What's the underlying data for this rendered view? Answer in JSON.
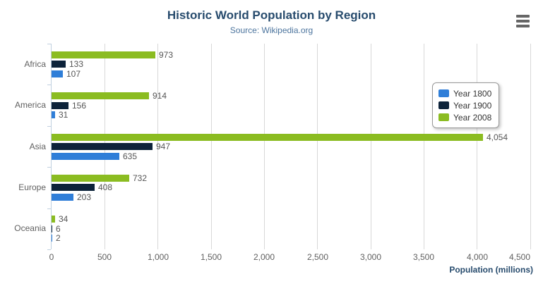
{
  "chart_data": {
    "type": "bar",
    "title": "Historic World Population by Region",
    "subtitle": "Source: Wikipedia.org",
    "categories": [
      "Africa",
      "America",
      "Asia",
      "Europe",
      "Oceania"
    ],
    "series": [
      {
        "name": "Year 1800",
        "color": "#2f7ed8",
        "values": [
          107,
          31,
          635,
          203,
          2
        ]
      },
      {
        "name": "Year 1900",
        "color": "#0d233a",
        "values": [
          133,
          156,
          947,
          408,
          6
        ]
      },
      {
        "name": "Year 2008",
        "color": "#8bbc21",
        "values": [
          973,
          914,
          4054,
          732,
          34
        ]
      }
    ],
    "bar_visual_order_top_to_bottom": [
      "Year 2008",
      "Year 1900",
      "Year 1800"
    ],
    "xlabel": "Population (millions)",
    "ylabel": "",
    "xlim": [
      0,
      4500
    ],
    "tick_interval": 500,
    "tick_labels": [
      "0",
      "500",
      "1,000",
      "1,500",
      "2,000",
      "2,500",
      "3,000",
      "3,500",
      "4,000",
      "4,500"
    ],
    "grid": true,
    "legend": {
      "position": "top-right",
      "items": [
        "Year 1800",
        "Year 1900",
        "Year 2008"
      ]
    },
    "data_labels_visible": true
  },
  "export_menu": {
    "icon": "hamburger-icon"
  },
  "colors": {
    "title": "#274b6d",
    "subtitle": "#4d759e",
    "axis_labels": "#606060",
    "data_labels": "#555555",
    "grid_line": "#d8d8d8",
    "category_axis_line": "#c0d0e0",
    "legend_text": "#333333",
    "menu_icon": "#666666",
    "background": "#ffffff"
  }
}
